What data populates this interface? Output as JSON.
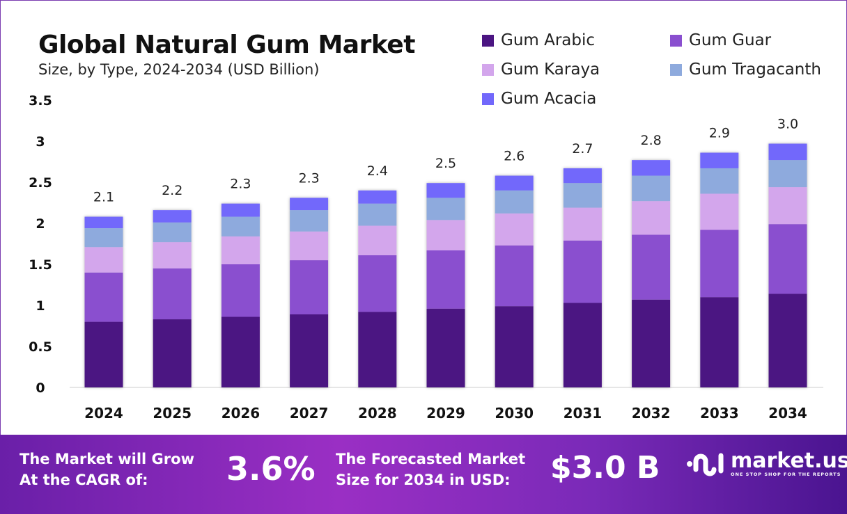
{
  "chart_data": {
    "type": "bar",
    "stacked": true,
    "title": "Global Natural Gum Market",
    "subtitle": "Size, by Type, 2024-2034 (USD Billion)",
    "categories": [
      "2024",
      "2025",
      "2026",
      "2027",
      "2028",
      "2029",
      "2030",
      "2031",
      "2032",
      "2033",
      "2034"
    ],
    "series": [
      {
        "name": "Gum Arabic",
        "color": "#4b1582",
        "values": [
          0.8,
          0.83,
          0.86,
          0.89,
          0.92,
          0.96,
          0.99,
          1.03,
          1.07,
          1.1,
          1.14
        ]
      },
      {
        "name": "Gum Guar",
        "color": "#8a4fcf",
        "values": [
          0.6,
          0.62,
          0.64,
          0.66,
          0.69,
          0.71,
          0.74,
          0.76,
          0.79,
          0.82,
          0.85
        ]
      },
      {
        "name": "Gum Karaya",
        "color": "#d3a6ec",
        "values": [
          0.31,
          0.32,
          0.34,
          0.35,
          0.36,
          0.37,
          0.39,
          0.4,
          0.41,
          0.44,
          0.45
        ]
      },
      {
        "name": "Gum Tragacanth",
        "color": "#8eaadd",
        "values": [
          0.23,
          0.24,
          0.24,
          0.26,
          0.27,
          0.27,
          0.28,
          0.3,
          0.31,
          0.31,
          0.33
        ]
      },
      {
        "name": "Gum Acacia",
        "color": "#7268fb",
        "values": [
          0.14,
          0.15,
          0.16,
          0.15,
          0.16,
          0.18,
          0.18,
          0.18,
          0.19,
          0.19,
          0.2
        ]
      }
    ],
    "totals": [
      "2.1",
      "2.2",
      "2.3",
      "2.3",
      "2.4",
      "2.5",
      "2.6",
      "2.7",
      "2.8",
      "2.9",
      "3.0"
    ],
    "yticks": [
      "0",
      "0.5",
      "1",
      "1.5",
      "2",
      "2.5",
      "3",
      "3.5"
    ],
    "ylim": [
      0,
      3.5
    ],
    "grid": false,
    "legend_position": "top-right"
  },
  "banner": {
    "cagr_label_1": "The Market will Grow",
    "cagr_label_2": "At the CAGR of:",
    "cagr_value": "3.6%",
    "forecast_label_1": "The Forecasted Market",
    "forecast_label_2": "Size for 2034 in USD:",
    "forecast_value": "$3.0 B",
    "logo_text": "market.us",
    "logo_tagline": "ONE STOP SHOP FOR THE REPORTS"
  }
}
